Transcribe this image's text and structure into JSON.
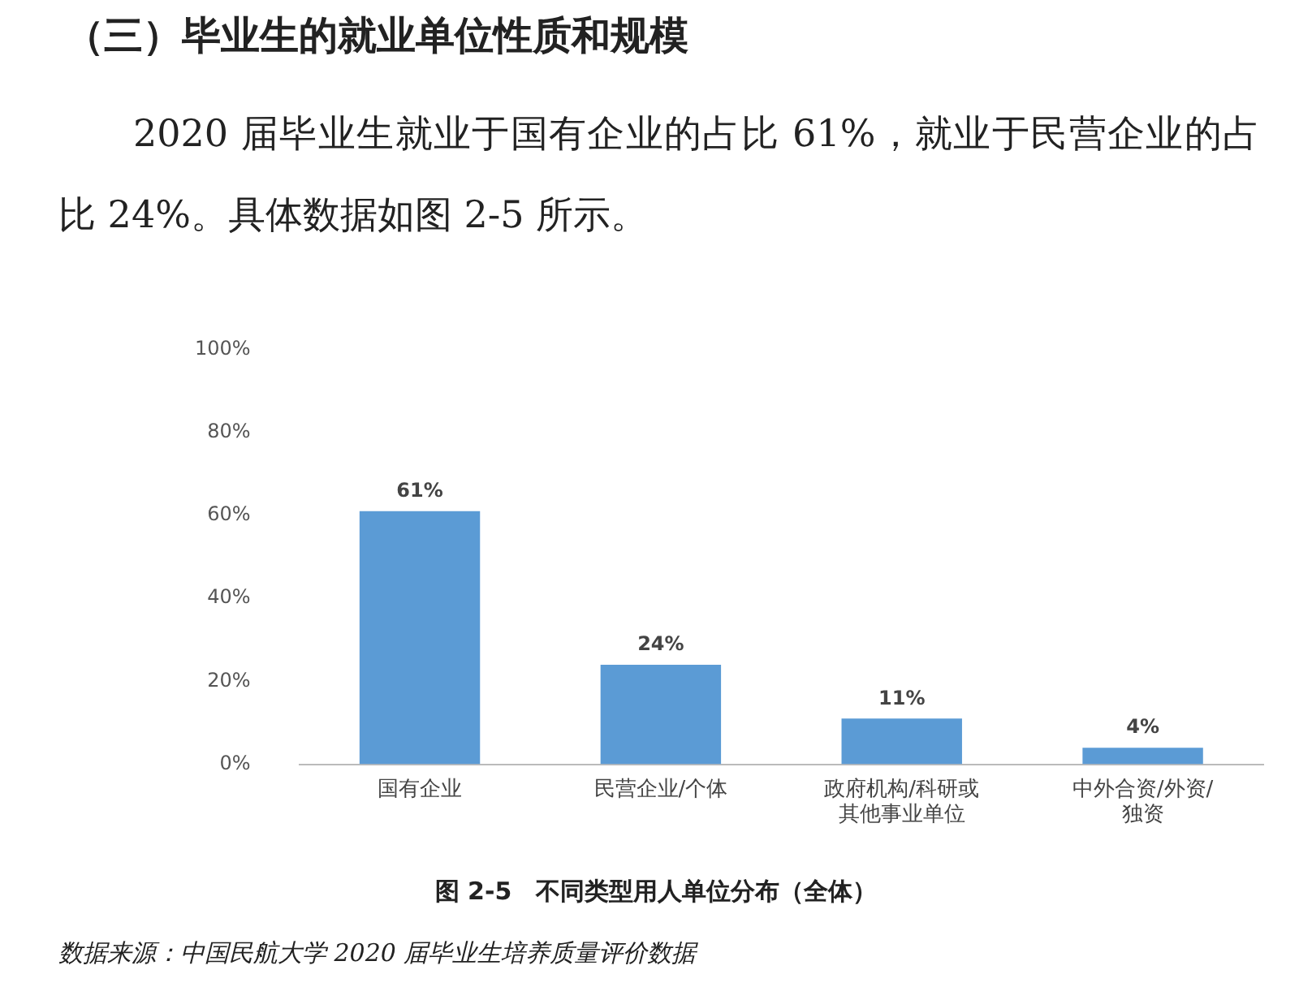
{
  "chart_data": {
    "type": "bar",
    "title": "（三）毕业生的就业单位性质和规模",
    "subtitle": "2020 届毕业生就业于国有企业的占比 61%，就业于民营企业的占比 24%。具体数据如图 2-5 所示。",
    "categories": [
      "国有企业",
      "民营企业/个体",
      "政府机构/科研或其他事业单位",
      "中外合资/外资/独资"
    ],
    "values": [
      61,
      24,
      11,
      4
    ],
    "color": "#5b9bd5",
    "value_labels": [
      "61%",
      "24%",
      "11%",
      "4%"
    ],
    "ylim": [
      0,
      100
    ],
    "yticks": [
      {
        "value": 0,
        "label": "0%"
      },
      {
        "value": 20,
        "label": "20%"
      },
      {
        "value": 40,
        "label": "40%"
      },
      {
        "value": 60,
        "label": "60%"
      },
      {
        "value": 80,
        "label": "80%"
      },
      {
        "value": 100,
        "label": "100%"
      }
    ],
    "grid": false,
    "legend": false,
    "annotations": [
      "图 2-5　不同类型用人单位分布（全体）",
      "数据来源：中国民航大学 2020 届毕业生培养质量评价数据"
    ]
  }
}
